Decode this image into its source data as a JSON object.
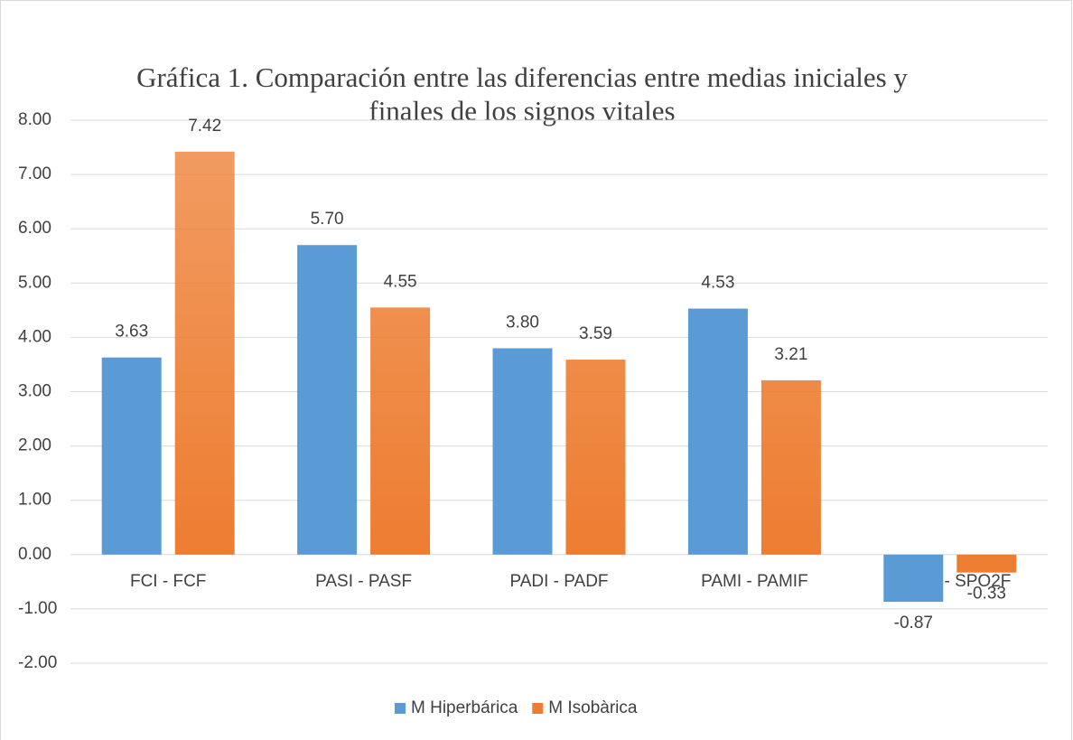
{
  "chart_data": {
    "type": "bar",
    "title": [
      "Gráfica 1. Comparación entre las diferencias entre medias iniciales y",
      "finales  de los signos vitales"
    ],
    "categories": [
      "FCI - FCF",
      "PASI - PASF",
      "PADI - PADF",
      "PAMI - PAMIF",
      "SPO2I - SPO2F"
    ],
    "series": [
      {
        "name": "M  Hiperbárica",
        "color": "#5b9bd5",
        "gradient": false,
        "values": [
          3.63,
          5.7,
          3.8,
          4.53,
          -0.87
        ],
        "value_labels": [
          "3.63",
          "5.70",
          "3.80",
          "4.53",
          "-0.87"
        ]
      },
      {
        "name": "M Isobàrica",
        "color": "#ed7d31",
        "gradient": true,
        "values": [
          7.42,
          4.55,
          3.59,
          3.21,
          -0.33
        ],
        "value_labels": [
          "7.42",
          "4.55",
          "3.59",
          "3.21",
          "-0.33"
        ]
      }
    ],
    "ylim": [
      -2,
      8
    ],
    "yticks": [
      {
        "value": -2,
        "label": "-2.00"
      },
      {
        "value": -1,
        "label": "-1.00"
      },
      {
        "value": 0,
        "label": "0.00"
      },
      {
        "value": 1,
        "label": "1.00"
      },
      {
        "value": 2,
        "label": "2.00"
      },
      {
        "value": 3,
        "label": "3.00"
      },
      {
        "value": 4,
        "label": "4.00"
      },
      {
        "value": 5,
        "label": "5.00"
      },
      {
        "value": 6,
        "label": "6.00"
      },
      {
        "value": 7,
        "label": "7.00"
      },
      {
        "value": 8,
        "label": "8.00"
      }
    ],
    "grid": true,
    "legend": "bottom"
  }
}
